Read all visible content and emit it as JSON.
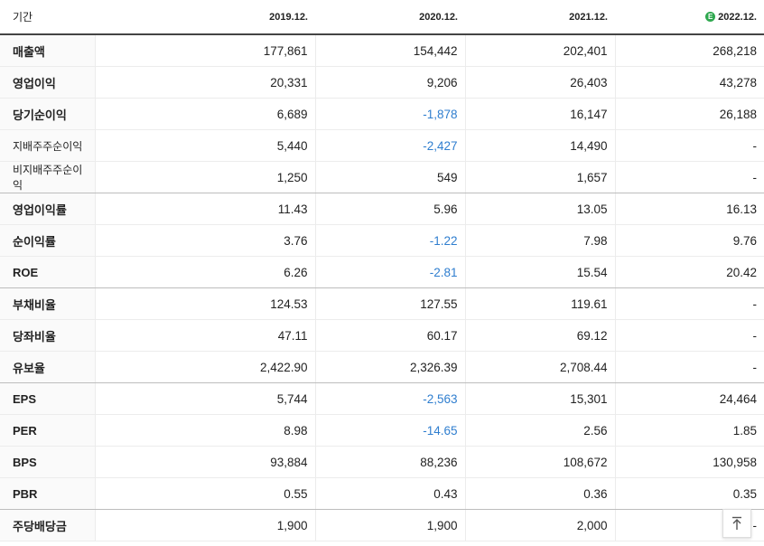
{
  "header": {
    "label": "기간",
    "periods": [
      "2019.12.",
      "2020.12.",
      "2021.12.",
      "2022.12."
    ],
    "estimate_badge": "E"
  },
  "rows": [
    {
      "label": "매출액",
      "values": [
        "177,861",
        "154,442",
        "202,401",
        "268,218"
      ]
    },
    {
      "label": "영업이익",
      "values": [
        "20,331",
        "9,206",
        "26,403",
        "43,278"
      ]
    },
    {
      "label": "당기순이익",
      "values": [
        "6,689",
        "-1,878",
        "16,147",
        "26,188"
      ]
    },
    {
      "label": "지배주주순이익",
      "values": [
        "5,440",
        "-2,427",
        "14,490",
        "-"
      ]
    },
    {
      "label": "비지배주주순이익",
      "values": [
        "1,250",
        "549",
        "1,657",
        "-"
      ]
    },
    {
      "label": "영업이익률",
      "values": [
        "11.43",
        "5.96",
        "13.05",
        "16.13"
      ]
    },
    {
      "label": "순이익률",
      "values": [
        "3.76",
        "-1.22",
        "7.98",
        "9.76"
      ]
    },
    {
      "label": "ROE",
      "values": [
        "6.26",
        "-2.81",
        "15.54",
        "20.42"
      ]
    },
    {
      "label": "부채비율",
      "values": [
        "124.53",
        "127.55",
        "119.61",
        "-"
      ]
    },
    {
      "label": "당좌비율",
      "values": [
        "47.11",
        "60.17",
        "69.12",
        "-"
      ]
    },
    {
      "label": "유보율",
      "values": [
        "2,422.90",
        "2,326.39",
        "2,708.44",
        "-"
      ]
    },
    {
      "label": "EPS",
      "values": [
        "5,744",
        "-2,563",
        "15,301",
        "24,464"
      ]
    },
    {
      "label": "PER",
      "values": [
        "8.98",
        "-14.65",
        "2.56",
        "1.85"
      ]
    },
    {
      "label": "BPS",
      "values": [
        "93,884",
        "88,236",
        "108,672",
        "130,958"
      ]
    },
    {
      "label": "PBR",
      "values": [
        "0.55",
        "0.43",
        "0.36",
        "0.35"
      ]
    },
    {
      "label": "주당배당금",
      "values": [
        "1,900",
        "1,900",
        "2,000",
        "-"
      ]
    }
  ],
  "colors": {
    "negative": "#2f7ecf",
    "estimate_badge": "#2fa84f"
  },
  "scroll_top_icon": "arrow-up-to-top-icon"
}
